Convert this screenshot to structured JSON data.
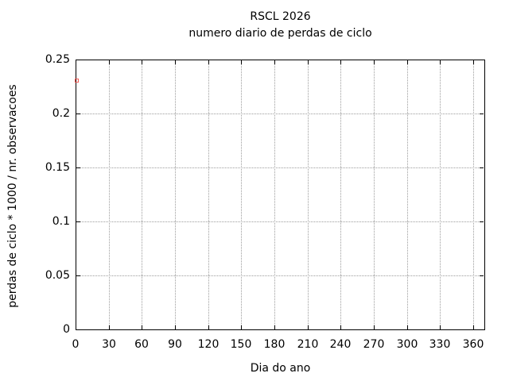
{
  "window": {
    "background": "#ffffff"
  },
  "chart_data": {
    "type": "scatter",
    "title": "RSCL 2026",
    "subtitle": "numero diario de perdas de ciclo",
    "xlabel": "Dia do ano",
    "ylabel": "perdas de ciclo * 1000 / nr. observacoes",
    "xlim": [
      0,
      370
    ],
    "ylim": [
      0,
      0.25
    ],
    "xticks": [
      0,
      30,
      60,
      90,
      120,
      150,
      180,
      210,
      240,
      270,
      300,
      330,
      360
    ],
    "yticks": [
      {
        "value": 0,
        "label": "0"
      },
      {
        "value": 0.05,
        "label": "0.05"
      },
      {
        "value": 0.1,
        "label": "0.1"
      },
      {
        "value": 0.15,
        "label": "0.15"
      },
      {
        "value": 0.2,
        "label": "0.2"
      },
      {
        "value": 0.25,
        "label": "0.25"
      }
    ],
    "grid": true,
    "grid_style": "dotted",
    "legend": "none",
    "series": [
      {
        "marker": "open-square",
        "color": "#f15b55",
        "points": [
          [
            1,
            0.231
          ]
        ]
      }
    ]
  },
  "colors": {
    "background": "#ffffff",
    "axis": "#000000",
    "grid": "#9c9c9c",
    "text": "#000000",
    "point": "#f15b55"
  }
}
